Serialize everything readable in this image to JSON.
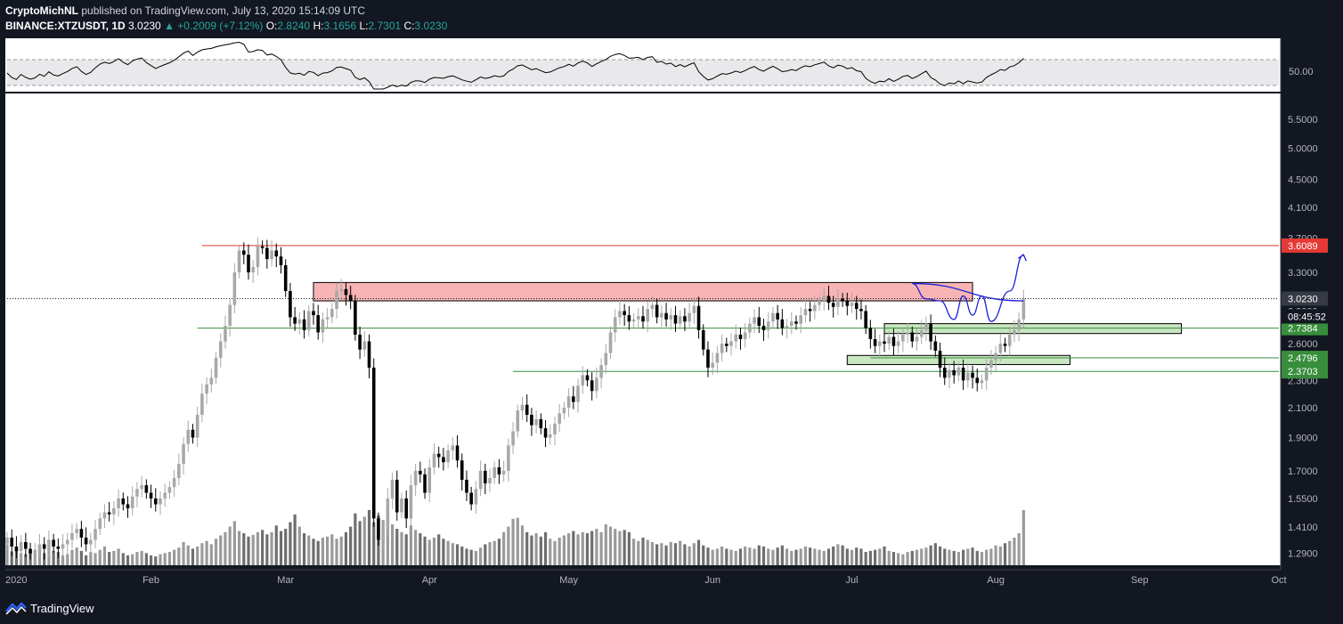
{
  "header": {
    "author": "CryptoMichNL",
    "published_text": "published on TradingView.com, July 13, 2020 15:14:09 UTC",
    "symbol": "BINANCE:XTZUSDT, 1D",
    "last": "3.0230",
    "change": "+0.2009 (+7.12%)",
    "o_label": "O:",
    "o": "2.8240",
    "h_label": "H:",
    "h": "3.1656",
    "l_label": "L:",
    "l": "2.7301",
    "c_label": "C:",
    "c": "3.0230"
  },
  "footer": {
    "brand": "TradingView"
  },
  "colors": {
    "background": "#131722",
    "plot": "#ffffff",
    "resistance": "#e53935",
    "support": "#388e3c",
    "projection": "#1e22d6",
    "supply_zone": "#f8b4b4",
    "demand_zone": "#c8e6c0",
    "candle_up": "#a8a8a8",
    "candle_down": "#000000"
  },
  "chart_data": {
    "type": "candlestick",
    "symbol": "BINANCE:XTZUSDT",
    "timeframe": "1D",
    "x_axis_labels": [
      "2020",
      "Feb",
      "Mar",
      "Apr",
      "May",
      "Jun",
      "Jul",
      "Aug",
      "Sep",
      "Oct"
    ],
    "y_axis_ticks": [
      "5.5000",
      "5.0000",
      "4.5000",
      "4.1000",
      "3.7000",
      "3.3000",
      "2.9000",
      "2.6000",
      "2.3000",
      "2.1000",
      "1.9000",
      "1.7000",
      "1.5500",
      "1.4100",
      "1.2900"
    ],
    "scale": "log",
    "ylim": [
      1.24,
      6.0
    ],
    "date_range": [
      "2020-01-01",
      "2020-10-01"
    ],
    "horizontal_levels": [
      {
        "label": "3.6089",
        "value": 3.6089,
        "kind": "resistance"
      },
      {
        "label": "2.7384",
        "value": 2.7384,
        "kind": "support"
      },
      {
        "label": "2.4796",
        "value": 2.4796,
        "kind": "support"
      },
      {
        "label": "2.3703",
        "value": 2.3703,
        "kind": "support"
      }
    ],
    "current_price": {
      "label": "3.0230",
      "value": 3.023,
      "countdown": "08:45:52"
    },
    "zones": [
      {
        "kind": "supply",
        "from": "2020-03-07",
        "to": "2020-07-27",
        "low": 3.0,
        "high": 3.19
      },
      {
        "kind": "demand",
        "from": "2020-07-08",
        "to": "2020-09-10",
        "low": 2.69,
        "high": 2.78
      },
      {
        "kind": "demand",
        "from": "2020-06-30",
        "to": "2020-08-17",
        "low": 2.425,
        "high": 2.5
      }
    ],
    "closes": [
      1.36,
      1.32,
      1.3,
      1.34,
      1.31,
      1.29,
      1.3,
      1.33,
      1.31,
      1.35,
      1.32,
      1.31,
      1.33,
      1.35,
      1.38,
      1.4,
      1.36,
      1.33,
      1.35,
      1.4,
      1.45,
      1.48,
      1.47,
      1.5,
      1.55,
      1.52,
      1.5,
      1.56,
      1.6,
      1.62,
      1.58,
      1.55,
      1.52,
      1.55,
      1.58,
      1.61,
      1.66,
      1.74,
      1.86,
      1.95,
      1.9,
      2.05,
      2.2,
      2.27,
      2.32,
      2.48,
      2.62,
      2.76,
      2.96,
      3.3,
      3.55,
      3.5,
      3.3,
      3.36,
      3.6,
      3.58,
      3.45,
      3.55,
      3.48,
      3.38,
      3.1,
      2.84,
      2.78,
      2.82,
      2.72,
      2.9,
      2.86,
      2.7,
      2.82,
      2.84,
      2.92,
      3.1,
      3.12,
      3.06,
      3.0,
      2.68,
      2.55,
      2.62,
      2.4,
      1.45,
      1.35,
      1.4,
      1.55,
      1.65,
      1.48,
      1.55,
      1.45,
      1.62,
      1.7,
      1.68,
      1.58,
      1.72,
      1.8,
      1.78,
      1.75,
      1.82,
      1.85,
      1.76,
      1.65,
      1.58,
      1.52,
      1.6,
      1.7,
      1.63,
      1.66,
      1.72,
      1.68,
      1.7,
      1.85,
      1.94,
      2.08,
      2.12,
      2.05,
      1.98,
      2.02,
      1.96,
      1.9,
      1.92,
      1.99,
      2.06,
      2.1,
      2.18,
      2.14,
      2.26,
      2.34,
      2.3,
      2.22,
      2.32,
      2.42,
      2.52,
      2.7,
      2.84,
      2.9,
      2.86,
      2.8,
      2.82,
      2.85,
      2.8,
      2.92,
      2.96,
      2.84,
      2.88,
      2.82,
      2.86,
      2.78,
      2.85,
      2.8,
      2.88,
      2.95,
      2.72,
      2.55,
      2.4,
      2.44,
      2.52,
      2.6,
      2.58,
      2.62,
      2.68,
      2.64,
      2.7,
      2.78,
      2.84,
      2.76,
      2.72,
      2.8,
      2.88,
      2.82,
      2.74,
      2.76,
      2.8,
      2.78,
      2.86,
      2.92,
      2.9,
      2.96,
      3.0,
      3.05,
      2.98,
      2.94,
      3.02,
      3.0,
      2.95,
      2.98,
      2.92,
      2.9,
      2.74,
      2.64,
      2.58,
      2.62,
      2.6,
      2.66,
      2.58,
      2.62,
      2.68,
      2.7,
      2.62,
      2.66,
      2.72,
      2.78,
      2.62,
      2.54,
      2.4,
      2.32,
      2.38,
      2.34,
      2.4,
      2.3,
      2.36,
      2.32,
      2.28,
      2.3,
      2.4,
      2.46,
      2.52,
      2.6,
      2.58,
      2.68,
      2.72,
      2.82,
      3.02
    ],
    "volumes": [
      38,
      25,
      30,
      22,
      20,
      25,
      28,
      35,
      22,
      30,
      26,
      24,
      18,
      20,
      28,
      32,
      26,
      18,
      24,
      22,
      28,
      34,
      24,
      26,
      30,
      22,
      18,
      20,
      24,
      26,
      22,
      18,
      16,
      20,
      22,
      24,
      28,
      32,
      42,
      36,
      30,
      34,
      40,
      44,
      38,
      48,
      54,
      60,
      70,
      80,
      62,
      58,
      52,
      55,
      60,
      64,
      56,
      60,
      72,
      62,
      66,
      78,
      92,
      70,
      58,
      54,
      48,
      44,
      50,
      52,
      56,
      48,
      52,
      60,
      70,
      94,
      80,
      88,
      100,
      78,
      90,
      82,
      70,
      74,
      66,
      60,
      56,
      72,
      64,
      58,
      52,
      46,
      50,
      56,
      48,
      44,
      40,
      38,
      34,
      30,
      28,
      26,
      32,
      38,
      42,
      44,
      48,
      60,
      70,
      84,
      86,
      72,
      60,
      54,
      58,
      52,
      60,
      48,
      44,
      50,
      54,
      58,
      62,
      56,
      60,
      58,
      62,
      66,
      60,
      74,
      70,
      66,
      62,
      64,
      60,
      48,
      44,
      50,
      46,
      42,
      38,
      40,
      36,
      42,
      40,
      44,
      38,
      34,
      40,
      46,
      36,
      32,
      28,
      30,
      34,
      30,
      28,
      26,
      30,
      34,
      32,
      30,
      36,
      34,
      30,
      28,
      32,
      36,
      30,
      26,
      28,
      30,
      34,
      32,
      30,
      28,
      26,
      30,
      34,
      38,
      36,
      30,
      28,
      32,
      30,
      24,
      26,
      28,
      30,
      34,
      26,
      24,
      22,
      20,
      24,
      26,
      28,
      30,
      32,
      36,
      40,
      34,
      30,
      28,
      26,
      24,
      28,
      30,
      32,
      26,
      24,
      28,
      30,
      36,
      34,
      40,
      44,
      50,
      58,
      100
    ]
  }
}
